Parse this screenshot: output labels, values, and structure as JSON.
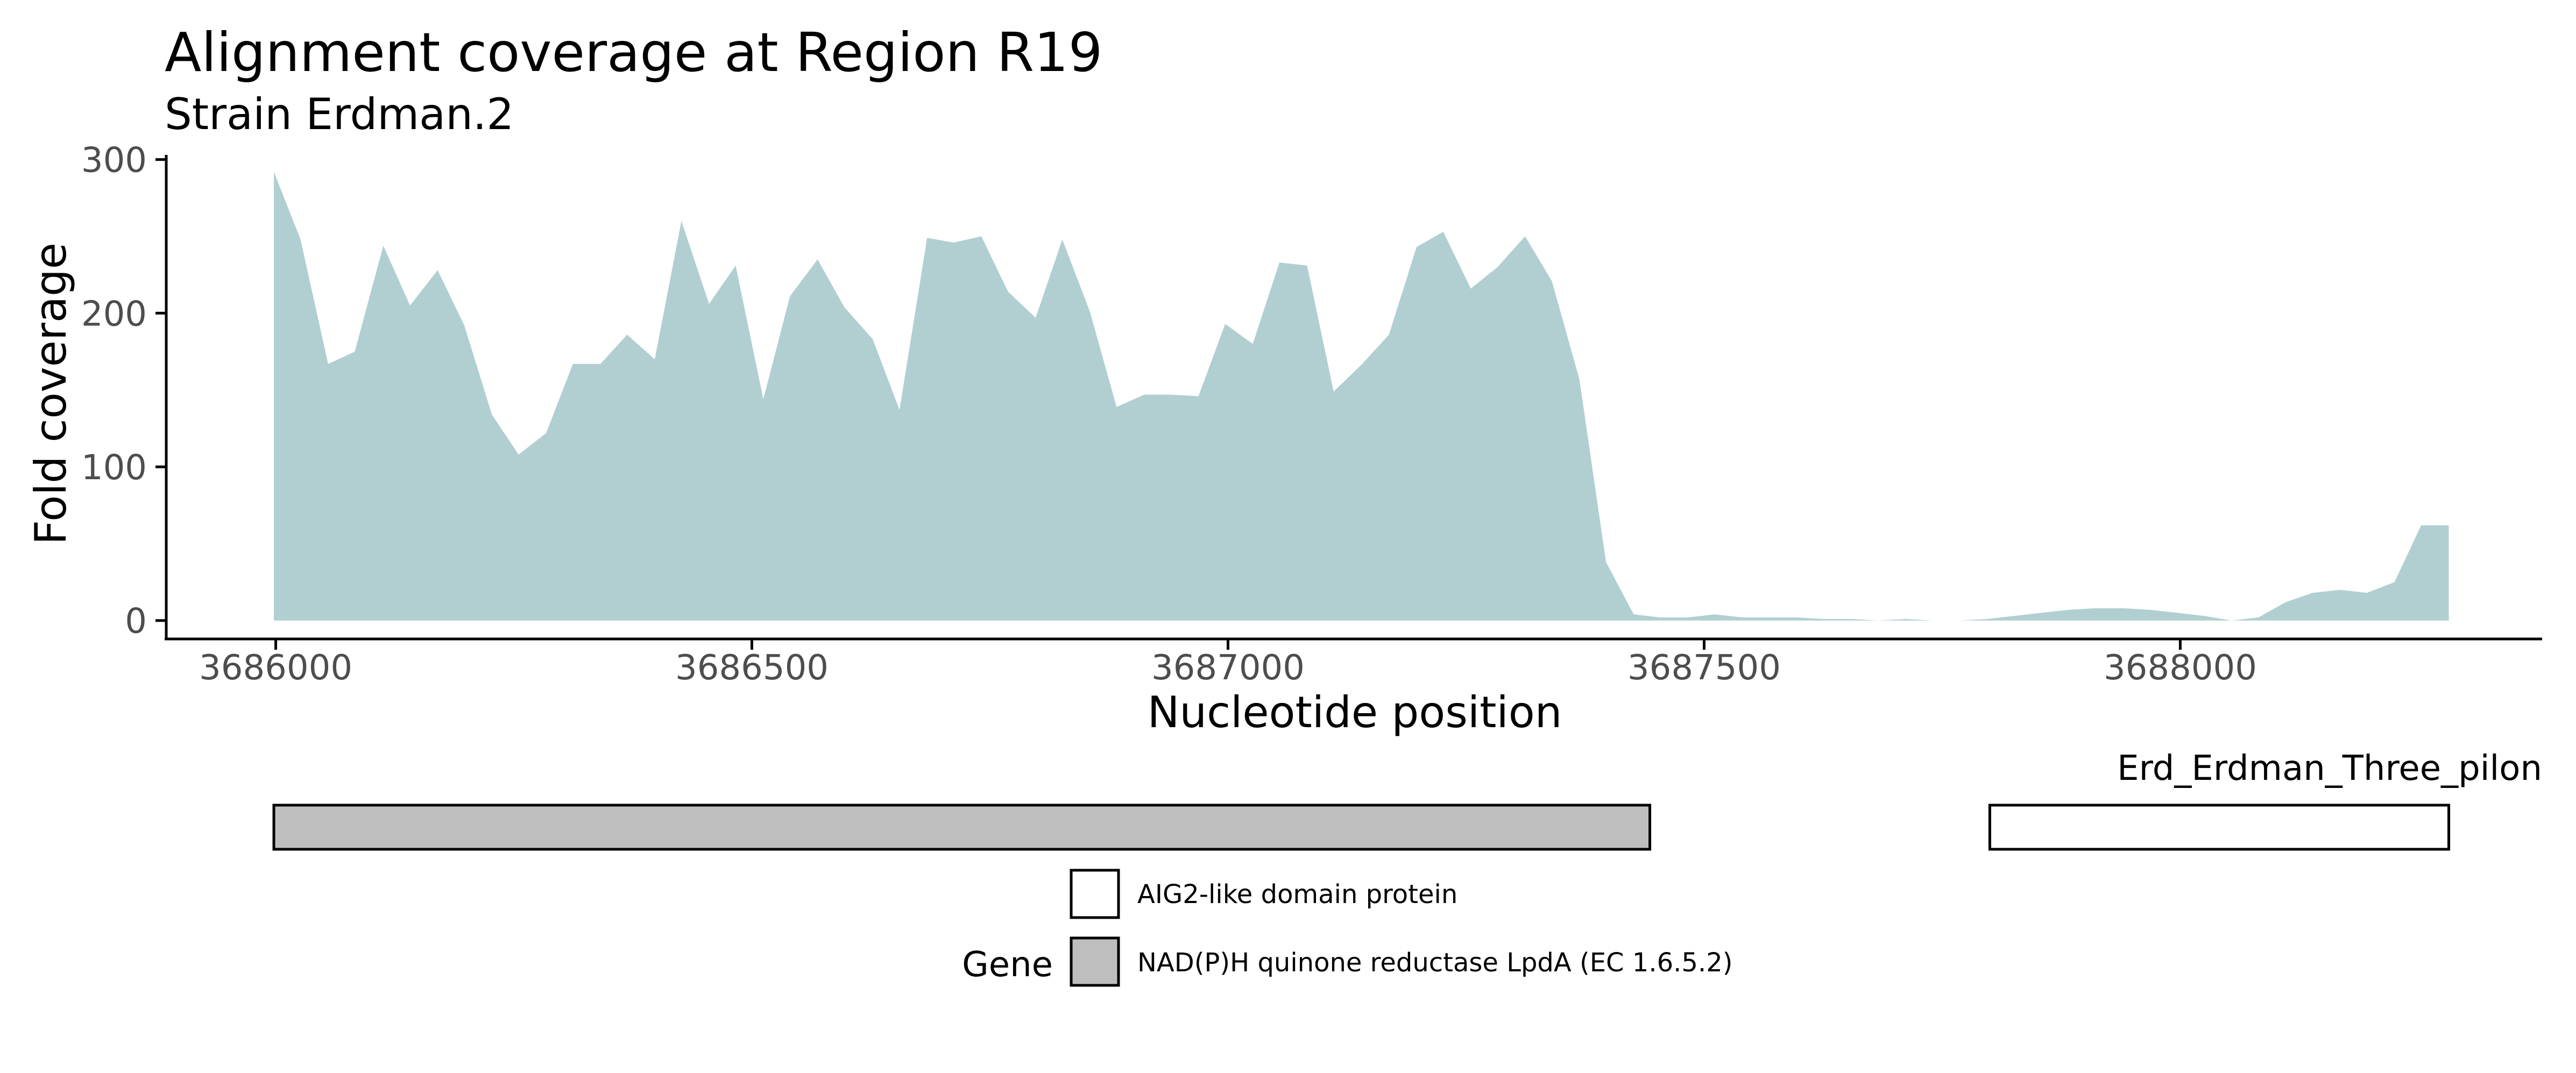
{
  "chart_data": {
    "type": "area",
    "title": "Alignment coverage at Region R19",
    "subtitle": "Strain Erdman.2",
    "xlabel": "Nucleotide position",
    "ylabel": "Fold coverage",
    "xlim": [
      3685885,
      3688380
    ],
    "ylim": [
      -12,
      303
    ],
    "xticks": [
      3686000,
      3686500,
      3687000,
      3687500,
      3688000
    ],
    "yticks": [
      0,
      100,
      200,
      300
    ],
    "grid": false,
    "fill_color": "#b1cfd1",
    "x": [
      3685998,
      3686026,
      3686055,
      3686083,
      3686113,
      3686141,
      3686170,
      3686198,
      3686227,
      3686255,
      3686284,
      3686312,
      3686341,
      3686369,
      3686398,
      3686426,
      3686455,
      3686483,
      3686512,
      3686540,
      3686569,
      3686597,
      3686627,
      3686655,
      3686684,
      3686712,
      3686741,
      3686769,
      3686798,
      3686826,
      3686855,
      3686883,
      3686912,
      3686940,
      3686969,
      3686997,
      3687026,
      3687054,
      3687083,
      3687111,
      3687141,
      3687169,
      3687198,
      3687226,
      3687255,
      3687283,
      3687312,
      3687340,
      3687369,
      3687397,
      3687426,
      3687454,
      3687483,
      3687511,
      3687540,
      3687568,
      3687597,
      3687625,
      3687655,
      3687683,
      3687712,
      3687740,
      3687769,
      3687797,
      3687826,
      3687854,
      3687883,
      3687911,
      3687940,
      3687968,
      3687997,
      3688025,
      3688054,
      3688082,
      3688111,
      3688139,
      3688168,
      3688196,
      3688225,
      3688253,
      3688282
    ],
    "values": [
      292,
      248,
      167,
      175,
      244,
      205,
      228,
      192,
      134,
      108,
      122,
      167,
      167,
      186,
      170,
      260,
      206,
      231,
      144,
      211,
      235,
      204,
      183,
      137,
      249,
      246,
      250,
      214,
      197,
      248,
      201,
      139,
      147,
      147,
      146,
      193,
      180,
      233,
      231,
      149,
      167,
      186,
      243,
      253,
      216,
      230,
      250,
      221,
      157,
      38,
      4,
      2,
      2,
      4,
      2,
      2,
      2,
      1,
      1,
      0,
      1,
      0,
      0,
      1,
      3,
      5,
      7,
      8,
      8,
      7,
      5,
      3,
      0,
      2,
      12,
      18,
      20,
      18,
      25,
      62,
      62
    ],
    "genes": [
      {
        "name": "NAD(P)H quinone reductase LpdA (EC 1.6.5.2)",
        "start": 3685998,
        "end": 3687443,
        "fill": "#bebebe"
      },
      {
        "name": "AIG2-like domain protein",
        "start": 3687800,
        "end": 3688282,
        "fill": "#ffffff"
      }
    ],
    "gene_track_label": "Erd_Erdman_Three_pilon",
    "legend": {
      "title": "Gene",
      "position": "bottom",
      "entries": [
        {
          "label": "AIG2-like domain protein",
          "fill": "#ffffff"
        },
        {
          "label": "NAD(P)H quinone reductase LpdA (EC 1.6.5.2)",
          "fill": "#bebebe"
        }
      ]
    }
  }
}
